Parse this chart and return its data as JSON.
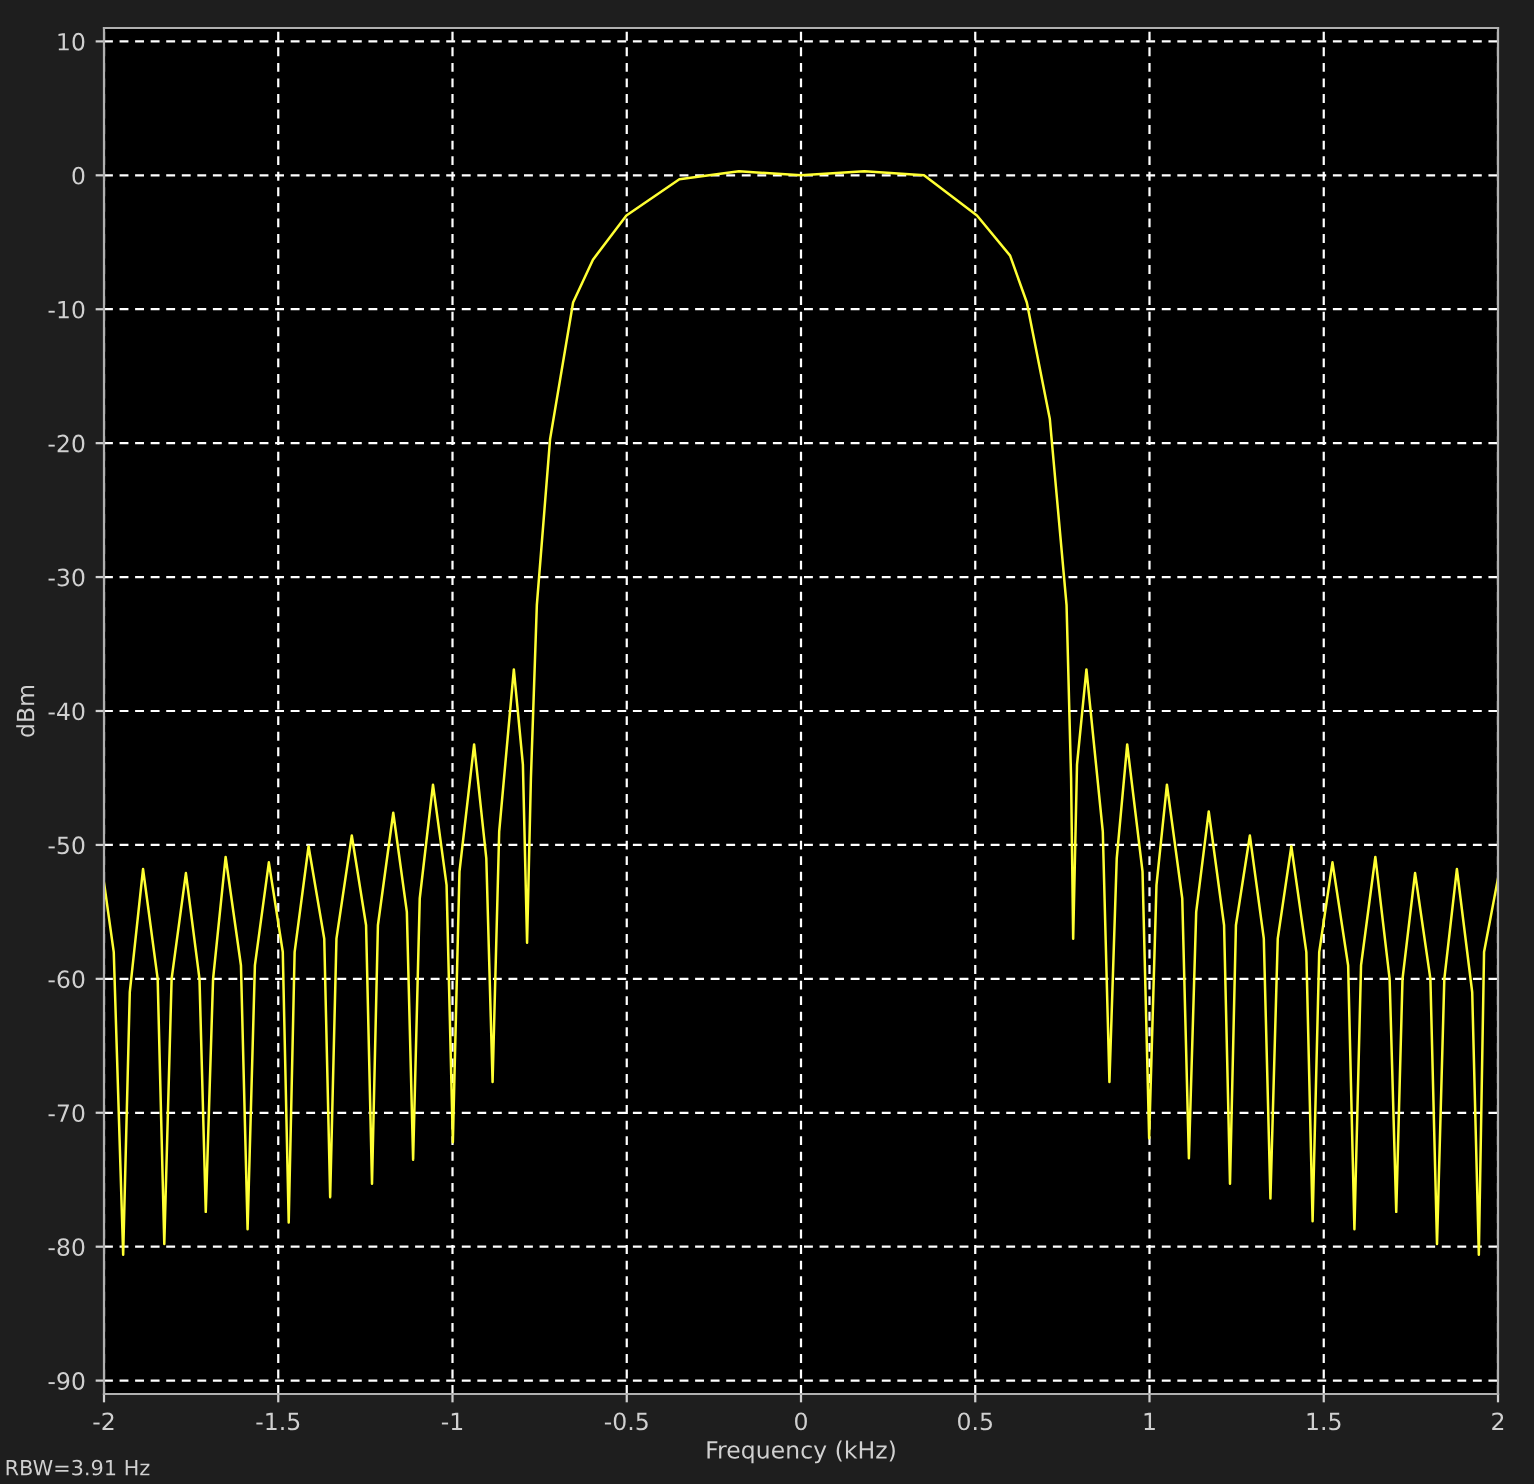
{
  "chart_data": {
    "type": "line",
    "xlabel": "Frequency (kHz)",
    "ylabel": "dBm",
    "annotations": [
      "RBW=3.91 Hz"
    ],
    "xlim": [
      -2,
      2
    ],
    "xticks": [
      -2,
      -1.5,
      -1,
      -0.5,
      0,
      0.5,
      1,
      1.5,
      2
    ],
    "ylim": [
      -91,
      11
    ],
    "yticks": [
      -90,
      -80,
      -70,
      -60,
      -50,
      -40,
      -30,
      -20,
      -10,
      0,
      10
    ],
    "grid": true,
    "marker": "none",
    "line_style": "solid",
    "series": [
      {
        "color": "#ffff33",
        "x": [
          -2.0,
          -1.972,
          -1.945,
          -1.926,
          -1.888,
          -1.846,
          -1.827,
          -1.806,
          -1.765,
          -1.726,
          -1.708,
          -1.687,
          -1.651,
          -1.607,
          -1.588,
          -1.567,
          -1.527,
          -1.487,
          -1.47,
          -1.453,
          -1.413,
          -1.368,
          -1.351,
          -1.333,
          -1.289,
          -1.248,
          -1.231,
          -1.214,
          -1.17,
          -1.131,
          -1.113,
          -1.094,
          -1.056,
          -1.017,
          -0.999,
          -0.98,
          -0.938,
          -0.903,
          -0.885,
          -0.866,
          -0.824,
          -0.798,
          -0.786,
          -0.775,
          -0.758,
          -0.72,
          -0.654,
          -0.597,
          -0.501,
          -0.349,
          -0.178,
          0,
          0.182,
          0.353,
          0.505,
          0.6,
          0.648,
          0.714,
          0.762,
          0.775,
          0.781,
          0.792,
          0.819,
          0.866,
          0.885,
          0.906,
          0.936,
          0.98,
          0.999,
          1.02,
          1.05,
          1.094,
          1.113,
          1.134,
          1.17,
          1.214,
          1.231,
          1.248,
          1.288,
          1.328,
          1.347,
          1.368,
          1.407,
          1.45,
          1.468,
          1.487,
          1.525,
          1.57,
          1.588,
          1.607,
          1.648,
          1.689,
          1.708,
          1.726,
          1.762,
          1.806,
          1.825,
          1.846,
          1.882,
          1.926,
          1.945,
          1.96,
          2.0
        ],
        "values": [
          -52.8,
          -58,
          -80.6,
          -61,
          -51.8,
          -60,
          -79.8,
          -60,
          -52.1,
          -60,
          -77.4,
          -60,
          -50.9,
          -59,
          -78.7,
          -59,
          -51.3,
          -58,
          -78.2,
          -58,
          -50.1,
          -57,
          -76.3,
          -57,
          -49.3,
          -56,
          -75.3,
          -56,
          -47.6,
          -55,
          -73.5,
          -54,
          -45.5,
          -53,
          -72.2,
          -52,
          -42.5,
          -51,
          -67.7,
          -49,
          -36.9,
          -44,
          -57.3,
          -45,
          -32.1,
          -19.7,
          -9.5,
          -6.3,
          -3.0,
          -0.3,
          0.3,
          0,
          0.3,
          0,
          -3,
          -6,
          -9.5,
          -18.2,
          -32.1,
          -45,
          -57,
          -44,
          -36.9,
          -49,
          -67.7,
          -51,
          -42.5,
          -52,
          -71.9,
          -53,
          -45.5,
          -54,
          -73.4,
          -55,
          -47.5,
          -56,
          -75.3,
          -56,
          -49.3,
          -57,
          -76.4,
          -57,
          -50.1,
          -58,
          -78.1,
          -58,
          -51.3,
          -59,
          -78.7,
          -59,
          -50.9,
          -60,
          -77.4,
          -60,
          -52.1,
          -60,
          -79.8,
          -60,
          -51.8,
          -61,
          -80.6,
          -58,
          -52.5
        ]
      }
    ]
  }
}
